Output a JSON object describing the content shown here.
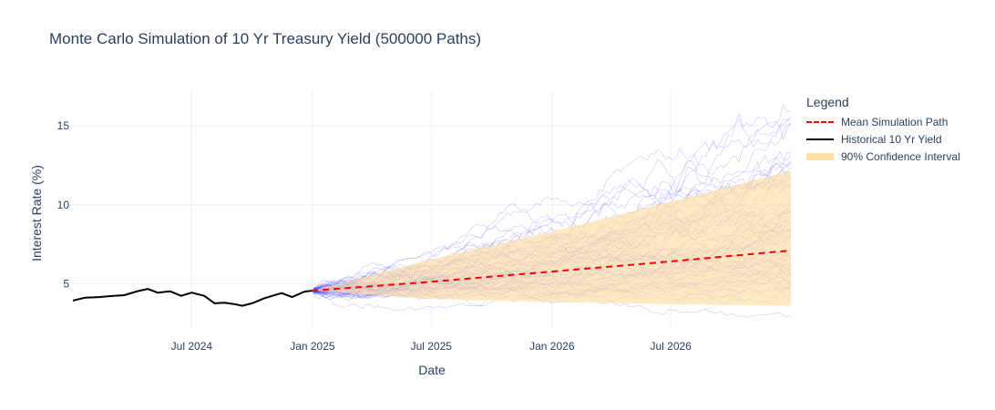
{
  "chart_data": {
    "type": "line",
    "title": "Monte Carlo Simulation of 10 Yr Treasury Yield (500000 Paths)",
    "xlabel": "Date",
    "ylabel": "Interest Rate (%)",
    "x_tick_labels": [
      "Jul 2024",
      "Jan 2025",
      "Jul 2025",
      "Jan 2026",
      "Jul 2026"
    ],
    "y_tick_labels": [
      "5",
      "10",
      "15"
    ],
    "xlim": [
      "2024-01-02",
      "2026-12-31"
    ],
    "ylim": [
      2.1,
      17.2
    ],
    "grid": true,
    "legend_position": "right",
    "legend_title": "Legend",
    "series": [
      {
        "name": "Mean Simulation Path",
        "style": "dashed",
        "color": "#ff0000",
        "x": [
          "2024-12-31",
          "2025-06-30",
          "2025-12-31",
          "2026-06-30",
          "2026-12-31"
        ],
        "y": [
          4.57,
          5.14,
          5.78,
          6.42,
          7.12
        ]
      },
      {
        "name": "Historical 10 Yr Yield",
        "style": "solid",
        "color": "#000000",
        "x": [
          "2024-01-02",
          "2024-01-20",
          "2024-02-10",
          "2024-03-01",
          "2024-03-20",
          "2024-04-10",
          "2024-04-25",
          "2024-05-10",
          "2024-05-29",
          "2024-06-15",
          "2024-07-01",
          "2024-07-20",
          "2024-08-05",
          "2024-08-20",
          "2024-09-05",
          "2024-09-16",
          "2024-10-01",
          "2024-10-20",
          "2024-11-05",
          "2024-11-15",
          "2024-12-01",
          "2024-12-20",
          "2024-12-31"
        ],
        "y": [
          3.95,
          4.13,
          4.17,
          4.24,
          4.29,
          4.55,
          4.69,
          4.45,
          4.54,
          4.25,
          4.45,
          4.25,
          3.78,
          3.82,
          3.72,
          3.62,
          3.78,
          4.1,
          4.3,
          4.42,
          4.17,
          4.52,
          4.57
        ]
      },
      {
        "name": "90% Confidence Interval",
        "style": "band",
        "color": "#ffe0a8",
        "x": [
          "2024-12-31",
          "2025-06-30",
          "2025-12-31",
          "2026-06-30",
          "2026-12-31"
        ],
        "lower": [
          4.57,
          4.05,
          3.85,
          3.72,
          3.62
        ],
        "upper": [
          4.57,
          6.55,
          8.3,
          10.2,
          12.15
        ]
      }
    ],
    "simulation_paths": {
      "color": "#3b3bff",
      "note_visible_count": "many thin translucent paths"
    }
  }
}
